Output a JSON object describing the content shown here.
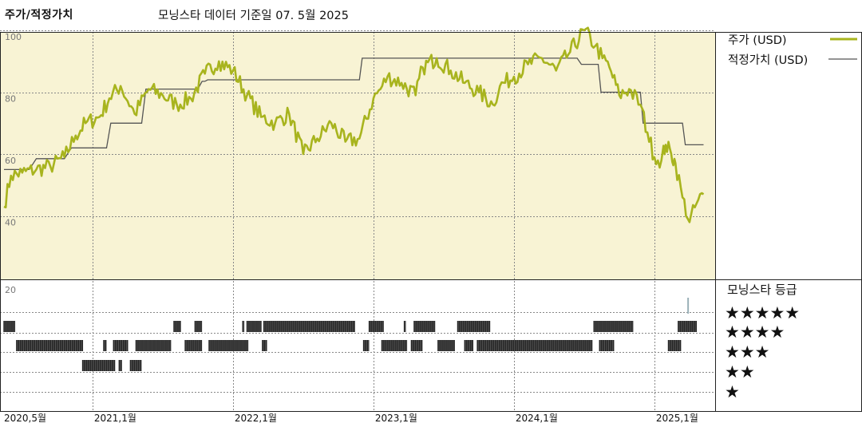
{
  "header": {
    "title": "주가/적정가치",
    "subtitle": "모닝스타 데이터 기준일 07. 5월 2025"
  },
  "chart_data": {
    "type": "line",
    "title": "주가/적정가치",
    "subtitle": "모닝스타 데이터 기준일 07. 5월 2025",
    "xlabel": "",
    "ylabel": "",
    "x_range": [
      "2020-05",
      "2025-06"
    ],
    "ylim": [
      20,
      105
    ],
    "y_ticks": [
      20,
      40,
      60,
      80,
      100
    ],
    "x_tick_labels": [
      {
        "t": 2020.37,
        "label": "2020,5월"
      },
      {
        "t": 2021.0,
        "label": "2021,1월"
      },
      {
        "t": 2022.0,
        "label": "2022,1월"
      },
      {
        "t": 2023.0,
        "label": "2023,1월"
      },
      {
        "t": 2024.0,
        "label": "2024,1월"
      },
      {
        "t": 2025.0,
        "label": "2025,1월"
      }
    ],
    "grid": true,
    "legend_position": "right",
    "colors": {
      "price": "#a8b41e",
      "fair_value": "#555555",
      "upper_bg": "#f8f3d4",
      "grid": "#888888",
      "rating": "#222222",
      "rating_tick": "#9ab0b8"
    },
    "series": [
      {
        "name": "주가 (USD)",
        "key": "price",
        "points": [
          [
            2020.37,
            43
          ],
          [
            2020.42,
            53
          ],
          [
            2020.5,
            54
          ],
          [
            2020.6,
            55
          ],
          [
            2020.7,
            56
          ],
          [
            2020.8,
            59
          ],
          [
            2020.88,
            66
          ],
          [
            2020.95,
            70
          ],
          [
            2021.05,
            72
          ],
          [
            2021.12,
            78
          ],
          [
            2021.2,
            82
          ],
          [
            2021.3,
            73
          ],
          [
            2021.4,
            81
          ],
          [
            2021.5,
            79
          ],
          [
            2021.6,
            76
          ],
          [
            2021.7,
            78
          ],
          [
            2021.8,
            86
          ],
          [
            2021.9,
            90
          ],
          [
            2022.0,
            87
          ],
          [
            2022.1,
            79
          ],
          [
            2022.2,
            72
          ],
          [
            2022.3,
            70
          ],
          [
            2022.4,
            73
          ],
          [
            2022.5,
            60
          ],
          [
            2022.6,
            65
          ],
          [
            2022.7,
            70
          ],
          [
            2022.8,
            64
          ],
          [
            2022.9,
            65
          ],
          [
            2023.0,
            78
          ],
          [
            2023.05,
            81
          ],
          [
            2023.1,
            85
          ],
          [
            2023.2,
            83
          ],
          [
            2023.3,
            79
          ],
          [
            2023.35,
            88
          ],
          [
            2023.45,
            91
          ],
          [
            2023.55,
            87
          ],
          [
            2023.65,
            83
          ],
          [
            2023.75,
            80
          ],
          [
            2023.85,
            76
          ],
          [
            2023.9,
            82
          ],
          [
            2024.0,
            85
          ],
          [
            2024.1,
            89
          ],
          [
            2024.2,
            91
          ],
          [
            2024.3,
            87
          ],
          [
            2024.4,
            93
          ],
          [
            2024.5,
            100
          ],
          [
            2024.58,
            95
          ],
          [
            2024.63,
            91
          ],
          [
            2024.68,
            88
          ],
          [
            2024.75,
            79
          ],
          [
            2024.82,
            81
          ],
          [
            2024.9,
            76
          ],
          [
            2024.95,
            67
          ],
          [
            2025.0,
            59
          ],
          [
            2025.05,
            58
          ],
          [
            2025.08,
            63
          ],
          [
            2025.12,
            60
          ],
          [
            2025.15,
            57
          ],
          [
            2025.2,
            46
          ],
          [
            2025.25,
            38
          ],
          [
            2025.3,
            44
          ],
          [
            2025.35,
            47
          ]
        ]
      },
      {
        "name": "적정가치 (USD)",
        "key": "fair_value",
        "points": [
          [
            2020.37,
            55
          ],
          [
            2020.55,
            55
          ],
          [
            2020.6,
            58.5
          ],
          [
            2020.8,
            58.5
          ],
          [
            2020.85,
            62
          ],
          [
            2021.1,
            62
          ],
          [
            2021.13,
            70
          ],
          [
            2021.35,
            70
          ],
          [
            2021.38,
            81
          ],
          [
            2021.75,
            81
          ],
          [
            2021.78,
            83.5
          ],
          [
            2021.8,
            83.5
          ],
          [
            2021.82,
            84
          ],
          [
            2022.9,
            84
          ],
          [
            2022.92,
            91
          ],
          [
            2024.45,
            91
          ],
          [
            2024.48,
            89
          ],
          [
            2024.6,
            89
          ],
          [
            2024.62,
            80
          ],
          [
            2024.9,
            80
          ],
          [
            2024.92,
            70
          ],
          [
            2025.2,
            70
          ],
          [
            2025.22,
            63
          ],
          [
            2025.35,
            63
          ]
        ]
      }
    ],
    "rating_panel": {
      "title": "모닝스타 등급",
      "levels": [
        {
          "stars": 5,
          "label": "★★★★★"
        },
        {
          "stars": 4,
          "label": "★★★★"
        },
        {
          "stars": 3,
          "label": "★★★"
        },
        {
          "stars": 2,
          "label": "★★"
        },
        {
          "stars": 1,
          "label": "★"
        }
      ],
      "history": [
        {
          "stars": 5,
          "from": 2025.24,
          "to": 2025.25
        },
        {
          "stars": 4,
          "from": 2020.37,
          "to": 2020.45
        },
        {
          "stars": 4,
          "from": 2021.58,
          "to": 2021.63
        },
        {
          "stars": 4,
          "from": 2021.73,
          "to": 2021.78
        },
        {
          "stars": 4,
          "from": 2022.07,
          "to": 2022.08
        },
        {
          "stars": 4,
          "from": 2022.1,
          "to": 2022.2
        },
        {
          "stars": 4,
          "from": 2022.22,
          "to": 2022.87
        },
        {
          "stars": 4,
          "from": 2022.97,
          "to": 2023.07
        },
        {
          "stars": 4,
          "from": 2023.22,
          "to": 2023.23
        },
        {
          "stars": 4,
          "from": 2023.29,
          "to": 2023.44
        },
        {
          "stars": 4,
          "from": 2023.6,
          "to": 2023.83
        },
        {
          "stars": 4,
          "from": 2024.57,
          "to": 2024.85
        },
        {
          "stars": 4,
          "from": 2025.17,
          "to": 2025.3
        },
        {
          "stars": 3,
          "from": 2020.46,
          "to": 2020.93
        },
        {
          "stars": 3,
          "from": 2021.08,
          "to": 2021.1
        },
        {
          "stars": 3,
          "from": 2021.15,
          "to": 2021.25
        },
        {
          "stars": 3,
          "from": 2021.31,
          "to": 2021.56
        },
        {
          "stars": 3,
          "from": 2021.66,
          "to": 2021.78
        },
        {
          "stars": 3,
          "from": 2021.83,
          "to": 2022.11
        },
        {
          "stars": 3,
          "from": 2022.21,
          "to": 2022.24
        },
        {
          "stars": 3,
          "from": 2022.93,
          "to": 2022.97
        },
        {
          "stars": 3,
          "from": 2023.06,
          "to": 2023.24
        },
        {
          "stars": 3,
          "from": 2023.27,
          "to": 2023.35
        },
        {
          "stars": 3,
          "from": 2023.46,
          "to": 2023.58
        },
        {
          "stars": 3,
          "from": 2023.65,
          "to": 2023.71
        },
        {
          "stars": 3,
          "from": 2023.74,
          "to": 2024.56
        },
        {
          "stars": 3,
          "from": 2024.61,
          "to": 2024.71
        },
        {
          "stars": 3,
          "from": 2025.1,
          "to": 2025.19
        },
        {
          "stars": 2,
          "from": 2020.93,
          "to": 2021.16
        },
        {
          "stars": 2,
          "from": 2021.19,
          "to": 2021.21
        },
        {
          "stars": 2,
          "from": 2021.27,
          "to": 2021.35
        }
      ]
    }
  }
}
